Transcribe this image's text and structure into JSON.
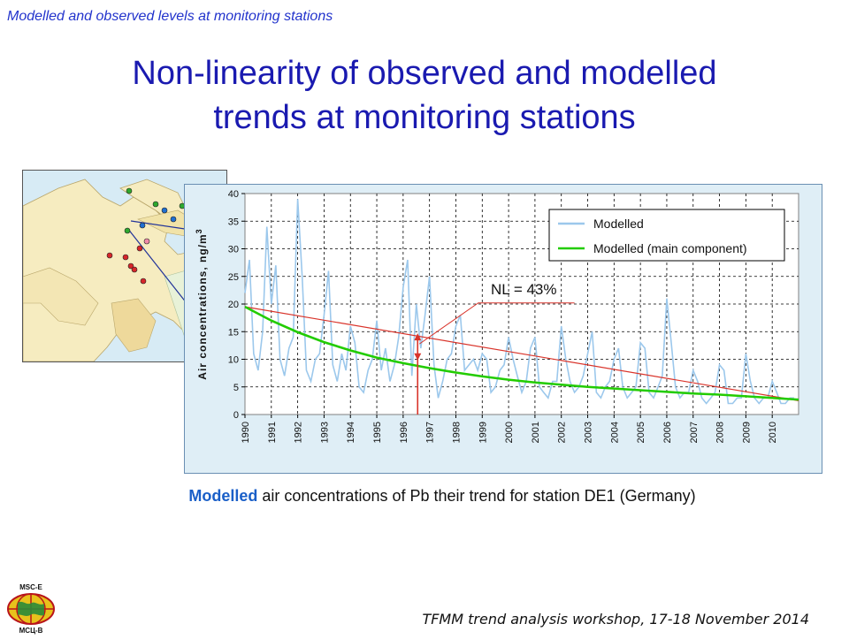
{
  "header": {
    "note": "Modelled and observed levels at monitoring stations"
  },
  "title": {
    "line1": "Non-linearity of observed and modelled",
    "line2": "trends at monitoring stations"
  },
  "caption": {
    "highlight": "Modelled",
    "rest": " air concentrations of Pb their trend for station DE1 (Germany)"
  },
  "footer": {
    "text": "TFMM trend analysis workshop, 17-18 November 2014"
  },
  "logo": {
    "top": "MSC-E",
    "bottom": "МСЦ-В"
  },
  "colors": {
    "title": "#1a1ab0",
    "modelled": "#9cc8ec",
    "main_component": "#22cc00",
    "trend": "#d9342b",
    "arrow": "#d9342b"
  },
  "chart_data": {
    "type": "line",
    "ylabel": "Air concentrations, ng/m",
    "ylabel_sup": "3",
    "xlabel": "",
    "ylim": [
      0,
      40
    ],
    "yticks": [
      0,
      5,
      10,
      15,
      20,
      25,
      30,
      35,
      40
    ],
    "xlim": [
      1990,
      2011
    ],
    "xticks": [
      "1990",
      "1991",
      "1992",
      "1993",
      "1994",
      "1995",
      "1996",
      "1997",
      "1998",
      "1999",
      "2000",
      "2001",
      "2002",
      "2003",
      "2004",
      "2005",
      "2006",
      "2007",
      "2008",
      "2009",
      "2010"
    ],
    "grid": true,
    "legend_position": "top-right",
    "annotation": "NL = 43%",
    "series": [
      {
        "name": "Modelled",
        "x": [
          1990.0,
          1990.17,
          1990.33,
          1990.5,
          1990.67,
          1990.83,
          1991.0,
          1991.17,
          1991.33,
          1991.5,
          1991.67,
          1991.83,
          1992.0,
          1992.17,
          1992.33,
          1992.5,
          1992.67,
          1992.83,
          1993.0,
          1993.17,
          1993.33,
          1993.5,
          1993.67,
          1993.83,
          1994.0,
          1994.17,
          1994.33,
          1994.5,
          1994.67,
          1994.83,
          1995.0,
          1995.17,
          1995.33,
          1995.5,
          1995.67,
          1995.83,
          1996.0,
          1996.17,
          1996.33,
          1996.5,
          1996.67,
          1996.83,
          1997.0,
          1997.17,
          1997.33,
          1997.5,
          1997.67,
          1997.83,
          1998.0,
          1998.17,
          1998.33,
          1998.5,
          1998.67,
          1998.83,
          1999.0,
          1999.17,
          1999.33,
          1999.5,
          1999.67,
          1999.83,
          2000.0,
          2000.17,
          2000.33,
          2000.5,
          2000.67,
          2000.83,
          2001.0,
          2001.17,
          2001.33,
          2001.5,
          2001.67,
          2001.83,
          2002.0,
          2002.17,
          2002.33,
          2002.5,
          2002.67,
          2002.83,
          2003.0,
          2003.17,
          2003.33,
          2003.5,
          2003.67,
          2003.83,
          2004.0,
          2004.17,
          2004.33,
          2004.5,
          2004.67,
          2004.83,
          2005.0,
          2005.17,
          2005.33,
          2005.5,
          2005.67,
          2005.83,
          2006.0,
          2006.17,
          2006.33,
          2006.5,
          2006.67,
          2006.83,
          2007.0,
          2007.17,
          2007.33,
          2007.5,
          2007.67,
          2007.83,
          2008.0,
          2008.17,
          2008.33,
          2008.5,
          2008.67,
          2008.83,
          2009.0,
          2009.17,
          2009.33,
          2009.5,
          2009.67,
          2009.83,
          2010.0,
          2010.17,
          2010.33,
          2010.5,
          2010.67,
          2010.83
        ],
        "y": [
          22,
          28,
          11,
          8,
          15,
          34,
          20,
          27,
          10,
          7,
          12,
          14,
          39,
          25,
          8,
          6,
          10,
          11,
          18,
          26,
          9,
          6,
          11,
          8,
          16,
          13,
          5,
          4,
          8,
          10,
          17,
          8,
          12,
          6,
          9,
          14,
          23,
          28,
          7,
          20,
          12,
          18,
          25,
          9,
          3,
          6,
          10,
          11,
          16,
          18,
          8,
          9,
          10,
          8,
          11,
          10,
          4,
          5,
          8,
          9,
          14,
          10,
          7,
          4,
          6,
          12,
          14,
          5,
          4,
          3,
          6,
          6,
          16,
          10,
          6,
          4,
          5,
          7,
          11,
          15,
          4,
          3,
          5,
          6,
          10,
          12,
          5,
          3,
          4,
          5,
          13,
          12,
          4,
          3,
          5,
          7,
          21,
          13,
          5,
          3,
          4,
          4,
          8,
          6,
          3,
          2,
          3,
          4,
          9,
          8,
          2,
          2,
          3,
          3,
          11,
          6,
          3,
          2,
          3,
          3,
          6,
          4,
          2,
          2,
          3,
          3
        ]
      },
      {
        "name": "Modelled (main component)",
        "x": [
          1990,
          1991,
          1992,
          1993,
          1994,
          1995,
          1996,
          1997,
          1998,
          1999,
          2000,
          2001,
          2002,
          2003,
          2004,
          2005,
          2006,
          2007,
          2008,
          2009,
          2010,
          2011
        ],
        "y": [
          19.5,
          17.0,
          14.9,
          13.1,
          11.6,
          10.3,
          9.3,
          8.4,
          7.6,
          6.9,
          6.3,
          5.8,
          5.4,
          5.0,
          4.7,
          4.4,
          4.1,
          3.8,
          3.6,
          3.3,
          3.0,
          2.7
        ]
      }
    ],
    "trend_line": {
      "x": [
        1990,
        2011
      ],
      "y": [
        19.5,
        2.5
      ]
    },
    "arrow": {
      "x": 1996.55,
      "y_from": 0,
      "y_to": 9.8,
      "y_tip": 14.7
    }
  }
}
